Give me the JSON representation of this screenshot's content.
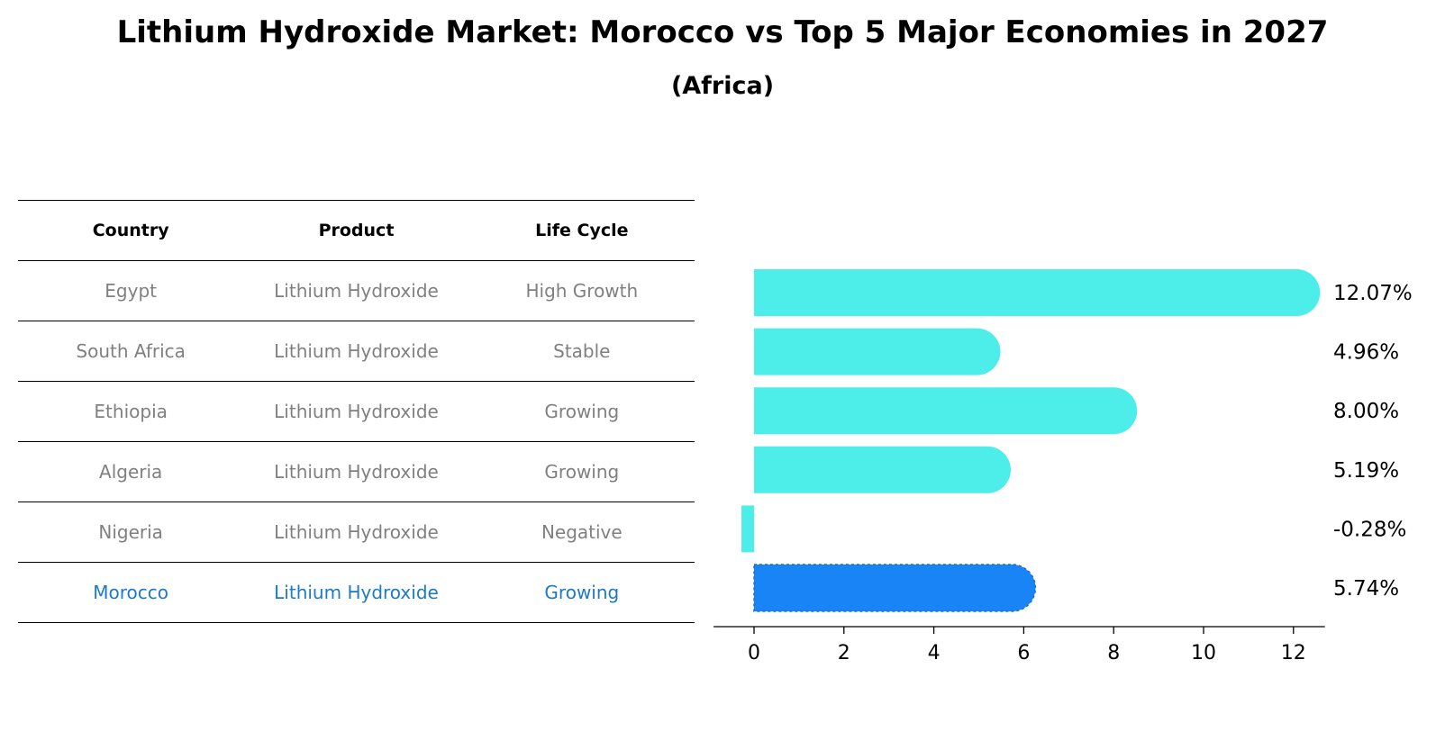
{
  "title": "Lithium Hydroxide Market: Morocco vs Top 5 Major Economies in 2027",
  "subtitle": "(Africa)",
  "table": {
    "headers": [
      "Country",
      "Product",
      "Life Cycle"
    ],
    "rows": [
      [
        "Egypt",
        "Lithium Hydroxide",
        "High Growth"
      ],
      [
        "South Africa",
        "Lithium Hydroxide",
        "Stable"
      ],
      [
        "Ethiopia",
        "Lithium Hydroxide",
        "Growing"
      ],
      [
        "Algeria",
        "Lithium Hydroxide",
        "Growing"
      ],
      [
        "Nigeria",
        "Lithium Hydroxide",
        "Negative"
      ],
      [
        "Morocco",
        "Lithium Hydroxide",
        "Growing"
      ]
    ]
  },
  "colors": {
    "bar": "#4deeea",
    "highlight_bar": "#1984f5",
    "highlight_text": "#1c7ac7",
    "muted_text": "#808080"
  },
  "chart_data": {
    "type": "bar",
    "orientation": "horizontal",
    "categories": [
      "Egypt",
      "South Africa",
      "Ethiopia",
      "Algeria",
      "Nigeria",
      "Morocco"
    ],
    "values": [
      12.07,
      4.96,
      8.0,
      5.19,
      -0.28,
      5.74
    ],
    "value_labels": [
      "12.07%",
      "4.96%",
      "8.00%",
      "5.19%",
      "-0.28%",
      "5.74%"
    ],
    "highlight": "Morocco",
    "xlim": [
      -0.9,
      12.7
    ],
    "xticks": [
      0,
      2,
      4,
      6,
      8,
      10,
      12
    ],
    "xlabel": "",
    "ylabel": "",
    "grid": false
  }
}
